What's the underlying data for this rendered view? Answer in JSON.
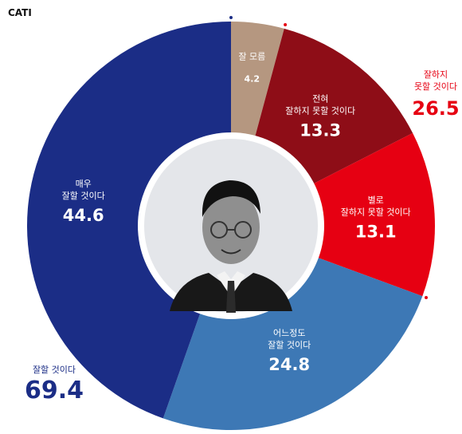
{
  "header": {
    "method": "CATI"
  },
  "chart_data": {
    "type": "pie",
    "start": "top",
    "direction": "clockwise",
    "slices": [
      {
        "name": "잘 모름",
        "value": 4.2,
        "color": "#b59780"
      },
      {
        "name_lines": [
          "전혀",
          "잘하지 못할 것이다"
        ],
        "value": 13.3,
        "color": "#8e0d17"
      },
      {
        "name_lines": [
          "별로",
          "잘하지 못할 것이다"
        ],
        "value": 13.1,
        "color": "#e60012"
      },
      {
        "name_lines": [
          "어느정도",
          "잘할 것이다"
        ],
        "value": 24.8,
        "color": "#3d78b5"
      },
      {
        "name_lines": [
          "매우",
          "잘할 것이다"
        ],
        "value": 44.6,
        "color": "#1b2d86"
      }
    ],
    "groups": [
      {
        "name_lines": [
          "잘하지",
          "못할 것이다"
        ],
        "value": 26.5,
        "color": "#e60012"
      },
      {
        "name_lines": [
          "잘할 것이다"
        ],
        "value": 69.4,
        "color": "#1b2d86"
      }
    ],
    "center_image": "portrait-photo"
  }
}
